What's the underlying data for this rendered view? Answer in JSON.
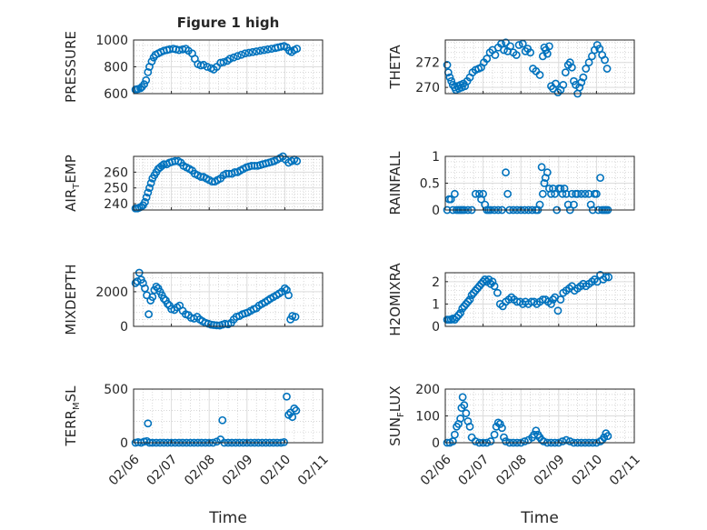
{
  "figure": {
    "title": "Figure 1 high",
    "xlabel": "Time"
  },
  "colors": {
    "marker": "#0072BD",
    "axes": "#262626",
    "grid": "#c8c8c8"
  },
  "date_ticks": [
    "02/06",
    "02/07",
    "02/08",
    "02/09",
    "02/10",
    "02/11"
  ],
  "chart_data": [
    {
      "type": "scatter",
      "ylabel": "PRESSURE",
      "ylabel_sub": "",
      "ylabel_tail": "",
      "xlim": [
        "02/06",
        "02/11"
      ],
      "ylim": [
        600,
        1000
      ],
      "yticks": [
        600,
        800,
        1000
      ],
      "x": [
        0.05,
        0.08,
        0.12,
        0.18,
        0.22,
        0.28,
        0.33,
        0.38,
        0.42,
        0.48,
        0.53,
        0.58,
        0.65,
        0.72,
        0.8,
        0.88,
        0.95,
        1.05,
        1.12,
        1.2,
        1.3,
        1.38,
        1.45,
        1.55,
        1.62,
        1.7,
        1.78,
        1.85,
        1.95,
        2.05,
        2.12,
        2.2,
        2.3,
        2.38,
        2.48,
        2.55,
        2.65,
        2.75,
        2.85,
        2.95,
        3.05,
        3.15,
        3.25,
        3.35,
        3.45,
        3.55,
        3.65,
        3.75,
        3.82,
        3.9,
        3.98,
        4.05,
        4.12,
        4.18,
        4.25,
        4.32
      ],
      "y": [
        630,
        632,
        635,
        640,
        650,
        670,
        700,
        760,
        800,
        840,
        870,
        890,
        900,
        910,
        920,
        925,
        930,
        935,
        930,
        925,
        930,
        935,
        920,
        900,
        860,
        820,
        810,
        815,
        800,
        790,
        780,
        800,
        830,
        835,
        845,
        860,
        870,
        880,
        890,
        900,
        905,
        910,
        915,
        920,
        925,
        930,
        935,
        940,
        945,
        950,
        955,
        945,
        920,
        910,
        925,
        935
      ]
    },
    {
      "type": "scatter",
      "ylabel": "THETA",
      "ylabel_sub": "",
      "ylabel_tail": "",
      "xlim": [
        "02/06",
        "02/11"
      ],
      "ylim": [
        269.5,
        273.8
      ],
      "yticks": [
        270,
        272
      ],
      "x": [
        0.05,
        0.08,
        0.12,
        0.16,
        0.2,
        0.25,
        0.28,
        0.32,
        0.36,
        0.4,
        0.44,
        0.48,
        0.52,
        0.58,
        0.65,
        0.72,
        0.8,
        0.88,
        0.95,
        1.02,
        1.1,
        1.18,
        1.25,
        1.32,
        1.4,
        1.48,
        1.55,
        1.6,
        1.65,
        1.72,
        1.8,
        1.88,
        1.95,
        2.05,
        2.12,
        2.18,
        2.25,
        2.32,
        2.4,
        2.5,
        2.58,
        2.62,
        2.66,
        2.7,
        2.75,
        2.8,
        2.85,
        2.92,
        2.98,
        3.05,
        3.12,
        3.18,
        3.25,
        3.3,
        3.35,
        3.4,
        3.45,
        3.5,
        3.55,
        3.6,
        3.65,
        3.72,
        3.8,
        3.88,
        3.95,
        4.02,
        4.08,
        4.15,
        4.22,
        4.28
      ],
      "y": [
        271.8,
        271.2,
        270.8,
        270.5,
        270.2,
        270.0,
        269.8,
        270.1,
        269.9,
        270.2,
        270.0,
        270.3,
        270.1,
        270.5,
        270.8,
        271.2,
        271.4,
        271.5,
        271.6,
        272.0,
        272.3,
        272.8,
        273.0,
        272.6,
        273.2,
        273.5,
        273.0,
        273.6,
        272.9,
        273.3,
        272.8,
        272.6,
        273.4,
        273.5,
        272.9,
        273.1,
        272.8,
        271.5,
        271.3,
        271.0,
        272.5,
        273.2,
        273.0,
        272.7,
        273.3,
        270.1,
        269.9,
        270.3,
        269.6,
        269.8,
        270.2,
        271.2,
        271.8,
        272.0,
        271.6,
        270.5,
        270.2,
        269.5,
        270.0,
        270.4,
        270.8,
        271.5,
        272.0,
        272.5,
        273.0,
        273.4,
        273.1,
        272.6,
        272.2,
        271.5
      ]
    },
    {
      "type": "scatter",
      "ylabel": "AIR",
      "ylabel_sub": "T",
      "ylabel_tail": "EMP",
      "xlim": [
        "02/06",
        "02/11"
      ],
      "ylim": [
        236,
        270
      ],
      "yticks": [
        240,
        250,
        260
      ],
      "x": [
        0.05,
        0.1,
        0.15,
        0.2,
        0.25,
        0.3,
        0.34,
        0.38,
        0.42,
        0.46,
        0.5,
        0.55,
        0.6,
        0.65,
        0.7,
        0.75,
        0.8,
        0.88,
        0.95,
        1.02,
        1.1,
        1.18,
        1.25,
        1.32,
        1.4,
        1.48,
        1.55,
        1.62,
        1.7,
        1.78,
        1.85,
        1.92,
        2.0,
        2.08,
        2.15,
        2.22,
        2.3,
        2.38,
        2.45,
        2.52,
        2.6,
        2.68,
        2.75,
        2.82,
        2.9,
        2.98,
        3.05,
        3.12,
        3.2,
        3.28,
        3.35,
        3.42,
        3.5,
        3.58,
        3.65,
        3.72,
        3.8,
        3.88,
        3.95,
        4.02,
        4.1,
        4.18,
        4.25,
        4.32
      ],
      "y": [
        237,
        237,
        237.5,
        238,
        239,
        241,
        244,
        247,
        250,
        253,
        256,
        258,
        260,
        262,
        263,
        264,
        265,
        265,
        266,
        266.5,
        267,
        267,
        266,
        264,
        263,
        262,
        261,
        259,
        258,
        257,
        257,
        256,
        255,
        254,
        254,
        255,
        256,
        258,
        259,
        259,
        259,
        260,
        260,
        261,
        262,
        263,
        263.5,
        264,
        264,
        264,
        264.5,
        265,
        265.5,
        266,
        266.5,
        267,
        268,
        269,
        270,
        268,
        266,
        267,
        268,
        267
      ]
    },
    {
      "type": "scatter",
      "ylabel": "RAINFALL",
      "ylabel_sub": "",
      "ylabel_tail": "",
      "xlim": [
        "02/06",
        "02/11"
      ],
      "ylim": [
        0,
        1
      ],
      "yticks": [
        0,
        0.5,
        1
      ],
      "x": [
        0.05,
        0.1,
        0.15,
        0.2,
        0.25,
        0.3,
        0.35,
        0.4,
        0.45,
        0.5,
        0.6,
        0.7,
        0.8,
        0.9,
        0.95,
        1.0,
        1.05,
        1.1,
        1.15,
        1.2,
        1.3,
        1.4,
        1.5,
        1.6,
        1.65,
        1.7,
        1.8,
        1.9,
        2.0,
        2.1,
        2.2,
        2.3,
        2.4,
        2.45,
        2.5,
        2.55,
        2.58,
        2.62,
        2.65,
        2.7,
        2.75,
        2.8,
        2.85,
        2.9,
        2.95,
        3.0,
        3.05,
        3.1,
        3.15,
        3.2,
        3.25,
        3.3,
        3.35,
        3.4,
        3.45,
        3.5,
        3.6,
        3.7,
        3.8,
        3.85,
        3.9,
        3.95,
        4.0,
        4.05,
        4.1,
        4.15,
        4.2,
        4.25,
        4.3
      ],
      "y": [
        0,
        0.2,
        0.2,
        0,
        0.3,
        0,
        0,
        0,
        0,
        0,
        0,
        0,
        0.3,
        0.3,
        0.2,
        0.3,
        0.1,
        0,
        0,
        0,
        0,
        0,
        0,
        0.7,
        0.3,
        0,
        0,
        0,
        0,
        0,
        0,
        0,
        0,
        0,
        0.1,
        0.8,
        0.3,
        0.5,
        0.6,
        0.7,
        0.4,
        0.3,
        0.4,
        0.3,
        0,
        0.4,
        0.4,
        0.3,
        0.4,
        0.3,
        0.1,
        0,
        0.3,
        0.1,
        0.3,
        0.3,
        0.3,
        0.3,
        0.3,
        0.1,
        0,
        0.3,
        0.3,
        0,
        0.6,
        0,
        0,
        0,
        0
      ]
    },
    {
      "type": "scatter",
      "ylabel": "MIXDEPTH",
      "ylabel_sub": "",
      "ylabel_tail": "",
      "xlim": [
        "02/06",
        "02/11"
      ],
      "ylim": [
        0,
        3100
      ],
      "yticks": [
        0,
        2000
      ],
      "x": [
        0.05,
        0.1,
        0.15,
        0.2,
        0.25,
        0.3,
        0.35,
        0.4,
        0.45,
        0.5,
        0.55,
        0.6,
        0.65,
        0.7,
        0.75,
        0.8,
        0.85,
        0.9,
        0.95,
        1.0,
        1.08,
        1.15,
        1.22,
        1.3,
        1.38,
        1.45,
        1.52,
        1.6,
        1.68,
        1.75,
        1.82,
        1.9,
        1.98,
        2.05,
        2.12,
        2.2,
        2.28,
        2.35,
        2.42,
        2.5,
        2.58,
        2.65,
        2.72,
        2.8,
        2.88,
        2.95,
        3.02,
        3.1,
        3.18,
        3.25,
        3.32,
        3.4,
        3.48,
        3.55,
        3.62,
        3.7,
        3.78,
        3.85,
        3.92,
        4.0,
        4.05,
        4.1,
        4.15,
        4.2,
        4.28
      ],
      "y": [
        2500,
        2600,
        3100,
        2700,
        2500,
        2200,
        1800,
        700,
        1500,
        1700,
        2100,
        2300,
        2200,
        2000,
        1800,
        1600,
        1500,
        1300,
        1200,
        1000,
        950,
        1100,
        1200,
        900,
        700,
        650,
        500,
        450,
        550,
        400,
        300,
        200,
        150,
        100,
        80,
        60,
        50,
        100,
        150,
        120,
        200,
        400,
        550,
        600,
        700,
        750,
        800,
        900,
        1000,
        1050,
        1200,
        1300,
        1400,
        1500,
        1600,
        1700,
        1800,
        1900,
        2000,
        2200,
        2100,
        1800,
        400,
        600,
        550
      ]
    },
    {
      "type": "scatter",
      "ylabel": "H2OMIXRA",
      "ylabel_sub": "",
      "ylabel_tail": "",
      "xlim": [
        "02/06",
        "02/11"
      ],
      "ylim": [
        0,
        2.4
      ],
      "yticks": [
        0,
        1,
        2
      ],
      "x": [
        0.05,
        0.1,
        0.15,
        0.2,
        0.25,
        0.3,
        0.35,
        0.4,
        0.45,
        0.5,
        0.55,
        0.6,
        0.65,
        0.7,
        0.75,
        0.8,
        0.85,
        0.9,
        0.95,
        1.0,
        1.05,
        1.1,
        1.15,
        1.2,
        1.25,
        1.3,
        1.38,
        1.45,
        1.52,
        1.6,
        1.68,
        1.75,
        1.82,
        1.9,
        1.98,
        2.05,
        2.12,
        2.2,
        2.28,
        2.35,
        2.42,
        2.5,
        2.58,
        2.65,
        2.72,
        2.8,
        2.85,
        2.9,
        2.98,
        3.05,
        3.12,
        3.2,
        3.28,
        3.35,
        3.42,
        3.5,
        3.58,
        3.65,
        3.72,
        3.8,
        3.88,
        3.95,
        4.02,
        4.1,
        4.18,
        4.25,
        4.32
      ],
      "y": [
        0.3,
        0.3,
        0.3,
        0.35,
        0.3,
        0.4,
        0.5,
        0.6,
        0.8,
        0.9,
        1.0,
        1.1,
        1.2,
        1.4,
        1.5,
        1.6,
        1.7,
        1.8,
        1.9,
        2.0,
        2.1,
        2.0,
        2.1,
        1.9,
        2.0,
        1.8,
        1.5,
        1.0,
        0.9,
        1.1,
        1.2,
        1.3,
        1.2,
        1.1,
        1.1,
        1.0,
        1.1,
        1.0,
        1.1,
        1.1,
        1.0,
        1.1,
        1.2,
        1.2,
        1.1,
        1.0,
        1.2,
        1.3,
        0.7,
        1.2,
        1.5,
        1.6,
        1.7,
        1.8,
        1.6,
        1.7,
        1.8,
        1.9,
        1.8,
        1.9,
        2.0,
        2.1,
        2.0,
        2.3,
        2.1,
        2.2,
        2.2
      ]
    },
    {
      "type": "scatter",
      "ylabel": "TERR",
      "ylabel_sub": "M",
      "ylabel_tail": "SL",
      "xlim": [
        "02/06",
        "02/11"
      ],
      "ylim": [
        0,
        500
      ],
      "yticks": [
        0,
        500
      ],
      "x": [
        0.05,
        0.12,
        0.2,
        0.28,
        0.35,
        0.38,
        0.42,
        0.5,
        0.6,
        0.7,
        0.8,
        0.9,
        1.0,
        1.1,
        1.2,
        1.3,
        1.4,
        1.5,
        1.6,
        1.7,
        1.8,
        1.9,
        2.0,
        2.1,
        2.2,
        2.3,
        2.35,
        2.4,
        2.5,
        2.6,
        2.7,
        2.8,
        2.9,
        3.0,
        3.1,
        3.2,
        3.3,
        3.4,
        3.5,
        3.6,
        3.7,
        3.8,
        3.9,
        3.98,
        4.05,
        4.1,
        4.15,
        4.2,
        4.25,
        4.3
      ],
      "y": [
        0,
        5,
        0,
        10,
        15,
        180,
        0,
        0,
        0,
        0,
        0,
        0,
        0,
        0,
        0,
        0,
        0,
        0,
        0,
        0,
        0,
        0,
        0,
        0,
        10,
        30,
        210,
        0,
        0,
        0,
        0,
        0,
        0,
        0,
        0,
        0,
        0,
        0,
        0,
        0,
        0,
        0,
        0,
        5,
        430,
        260,
        280,
        240,
        320,
        300
      ]
    },
    {
      "type": "scatter",
      "ylabel": "SUN",
      "ylabel_sub": "F",
      "ylabel_tail": "LUX",
      "xlim": [
        "02/06",
        "02/11"
      ],
      "ylim": [
        0,
        200
      ],
      "yticks": [
        0,
        100,
        200
      ],
      "x": [
        0.05,
        0.12,
        0.2,
        0.25,
        0.3,
        0.35,
        0.4,
        0.43,
        0.46,
        0.5,
        0.55,
        0.6,
        0.65,
        0.7,
        0.8,
        0.9,
        1.0,
        1.1,
        1.2,
        1.3,
        1.35,
        1.4,
        1.45,
        1.5,
        1.55,
        1.6,
        1.7,
        1.8,
        1.9,
        2.0,
        2.1,
        2.2,
        2.3,
        2.35,
        2.4,
        2.45,
        2.5,
        2.55,
        2.6,
        2.7,
        2.8,
        2.9,
        3.0,
        3.1,
        3.2,
        3.3,
        3.4,
        3.5,
        3.6,
        3.7,
        3.8,
        3.9,
        4.0,
        4.1,
        4.15,
        4.2,
        4.25,
        4.3
      ],
      "y": [
        0,
        0,
        5,
        30,
        60,
        70,
        90,
        130,
        170,
        140,
        110,
        80,
        60,
        20,
        5,
        0,
        0,
        0,
        5,
        30,
        60,
        75,
        70,
        55,
        20,
        5,
        0,
        0,
        0,
        0,
        5,
        10,
        20,
        30,
        45,
        30,
        20,
        10,
        5,
        0,
        0,
        0,
        0,
        5,
        10,
        5,
        0,
        0,
        0,
        0,
        0,
        0,
        0,
        5,
        10,
        20,
        35,
        25
      ]
    }
  ]
}
